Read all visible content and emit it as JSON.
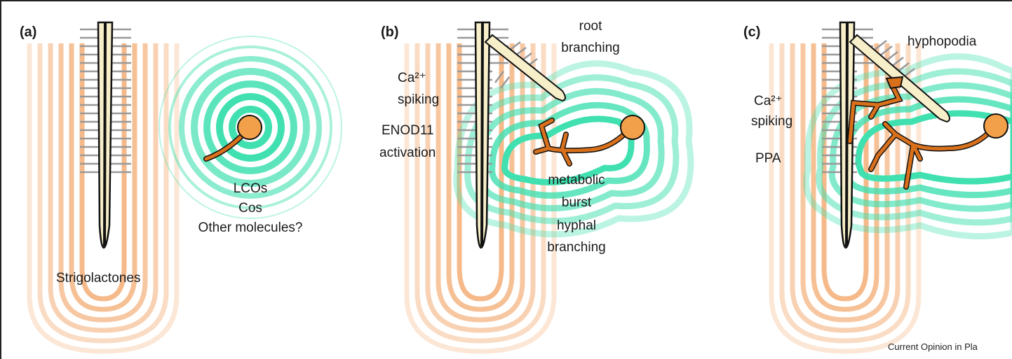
{
  "panels": [
    {
      "label": "(a)",
      "texts": {
        "root_signal": "Strigolactones",
        "fungal_signals": [
          "LCOs",
          "Cos",
          "Other molecules?"
        ]
      }
    },
    {
      "label": "(b)",
      "texts": {
        "lateral_root": [
          "root",
          "branching"
        ],
        "calcium": [
          "Ca²⁺",
          "spiking"
        ],
        "gene": [
          "ENOD11",
          "activation"
        ],
        "fungal_response": [
          "metabolic",
          "burst",
          "hyphal",
          "branching"
        ]
      }
    },
    {
      "label": "(c)",
      "texts": {
        "structure": "hyphopodia",
        "calcium": [
          "Ca²⁺",
          "spiking"
        ],
        "apparatus": "PPA"
      }
    }
  ],
  "credit": "Current Opinion in Pla",
  "colors": {
    "root_signal_rings": "#f5b98a",
    "fungal_signal_rings": "#40e0b0",
    "hypha": "#d9711c",
    "spore": "#f3a04a",
    "root_body": "#f7efc9",
    "root_hairs": "#bdbdbd"
  }
}
